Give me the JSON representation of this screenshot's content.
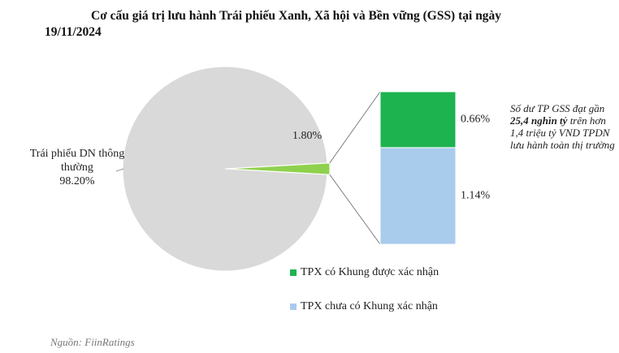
{
  "chart_data": {
    "type": "pie",
    "title": "Cơ cấu giá trị lưu hành Trái phiếu Xanh, Xã hội và Bền vững (GSS) tại ngày 19/11/2024",
    "categories": [
      "Trái phiếu DN thông thường",
      null
    ],
    "values": [
      98.2,
      1.8
    ],
    "value_labels": [
      "98.20%",
      "1.80%"
    ],
    "colors": [
      "#d9d9d9",
      "#8fd14f"
    ],
    "breakdown": {
      "type": "stacked-bar",
      "series": [
        {
          "name": "TPX có Khung được xác nhận",
          "color": "#1db34f",
          "values": [
            0.66
          ],
          "value_labels": [
            "0.66%"
          ]
        },
        {
          "name": "TPX chưa có Khung xác nhận",
          "color": "#a9cbec",
          "values": [
            1.14
          ],
          "value_labels": [
            "1.14%"
          ]
        }
      ]
    },
    "annotation": [
      "Số dư TP GSS đạt gần ",
      "25,4 nghìn tỷ",
      " trên hơn 1,4 triệu tỷ VND TPDN lưu hành toàn thị trường"
    ],
    "source": "Nguồn: FiinRatings"
  }
}
